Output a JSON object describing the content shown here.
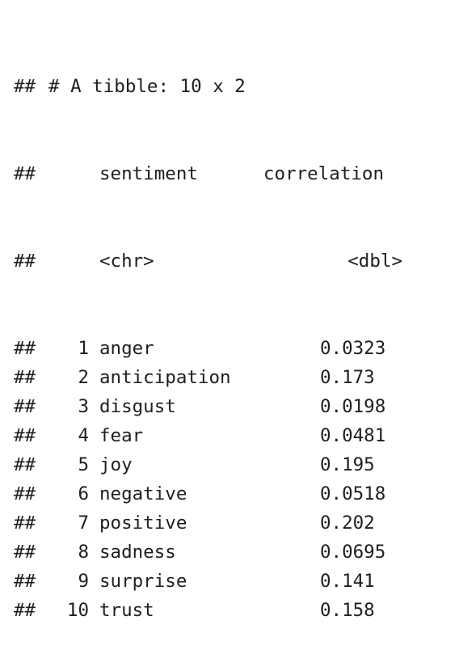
{
  "output": {
    "comment_prefix": "##",
    "header": "# A tibble: 10 x 2",
    "columns": [
      "sentiment",
      "correlation"
    ],
    "types": [
      "<chr>",
      "<dbl>"
    ],
    "rows": [
      {
        "n": "1",
        "sentiment": "anger",
        "correlation": "0.0323"
      },
      {
        "n": "2",
        "sentiment": "anticipation",
        "correlation": "0.173"
      },
      {
        "n": "3",
        "sentiment": "disgust",
        "correlation": "0.0198"
      },
      {
        "n": "4",
        "sentiment": "fear",
        "correlation": "0.0481"
      },
      {
        "n": "5",
        "sentiment": "joy",
        "correlation": "0.195"
      },
      {
        "n": "6",
        "sentiment": "negative",
        "correlation": "0.0518"
      },
      {
        "n": "7",
        "sentiment": "positive",
        "correlation": "0.202"
      },
      {
        "n": "8",
        "sentiment": "sadness",
        "correlation": "0.0695"
      },
      {
        "n": "9",
        "sentiment": "surprise",
        "correlation": "0.141"
      },
      {
        "n": "10",
        "sentiment": "trust",
        "correlation": "0.158"
      }
    ]
  }
}
